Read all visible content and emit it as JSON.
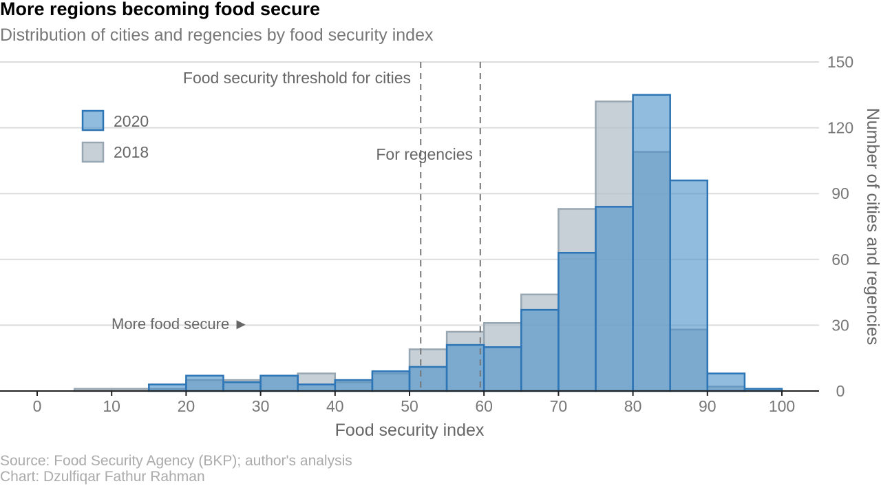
{
  "title": "More regions becoming food secure",
  "subtitle": "Distribution of cities and regencies by food security index",
  "source": "Source: Food Security Agency (BKP); author's analysis",
  "credit": "Chart: Dzulfiqar Fathur Rahman",
  "chart_data": {
    "type": "bar",
    "subtype": "overlapping histogram",
    "bin_width": 5,
    "bin_starts": [
      5,
      10,
      15,
      20,
      25,
      30,
      35,
      40,
      45,
      50,
      55,
      60,
      65,
      70,
      75,
      80,
      85,
      90,
      95
    ],
    "series": [
      {
        "name": "2020",
        "color": "#4a90c8",
        "stroke": "#2e75b6",
        "values": [
          0,
          0,
          3,
          7,
          4,
          7,
          3,
          5,
          9,
          11,
          21,
          20,
          37,
          63,
          84,
          135,
          96,
          8,
          1
        ]
      },
      {
        "name": "2018",
        "color": "#b4c0ca",
        "stroke": "#98a6b2",
        "values": [
          1,
          1,
          1,
          5,
          5,
          7,
          8,
          4,
          8,
          19,
          27,
          31,
          44,
          83,
          132,
          109,
          28,
          2,
          0
        ]
      }
    ],
    "xlabel": "Food security index",
    "ylabel": "Number of cities and regencies",
    "xlim": [
      0,
      100
    ],
    "ylim": [
      0,
      150
    ],
    "x_ticks": [
      0,
      10,
      20,
      30,
      40,
      50,
      60,
      70,
      80,
      90,
      100
    ],
    "y_ticks": [
      0,
      30,
      60,
      90,
      120,
      150
    ],
    "y_axis_position": "right",
    "grid": true,
    "legend_position": "top-left",
    "thresholds": [
      {
        "x": 51.5,
        "label": "Food security threshold for cities"
      },
      {
        "x": 59.5,
        "label": "For regencies"
      }
    ],
    "annotations": [
      {
        "text": "More food secure ►"
      }
    ]
  }
}
